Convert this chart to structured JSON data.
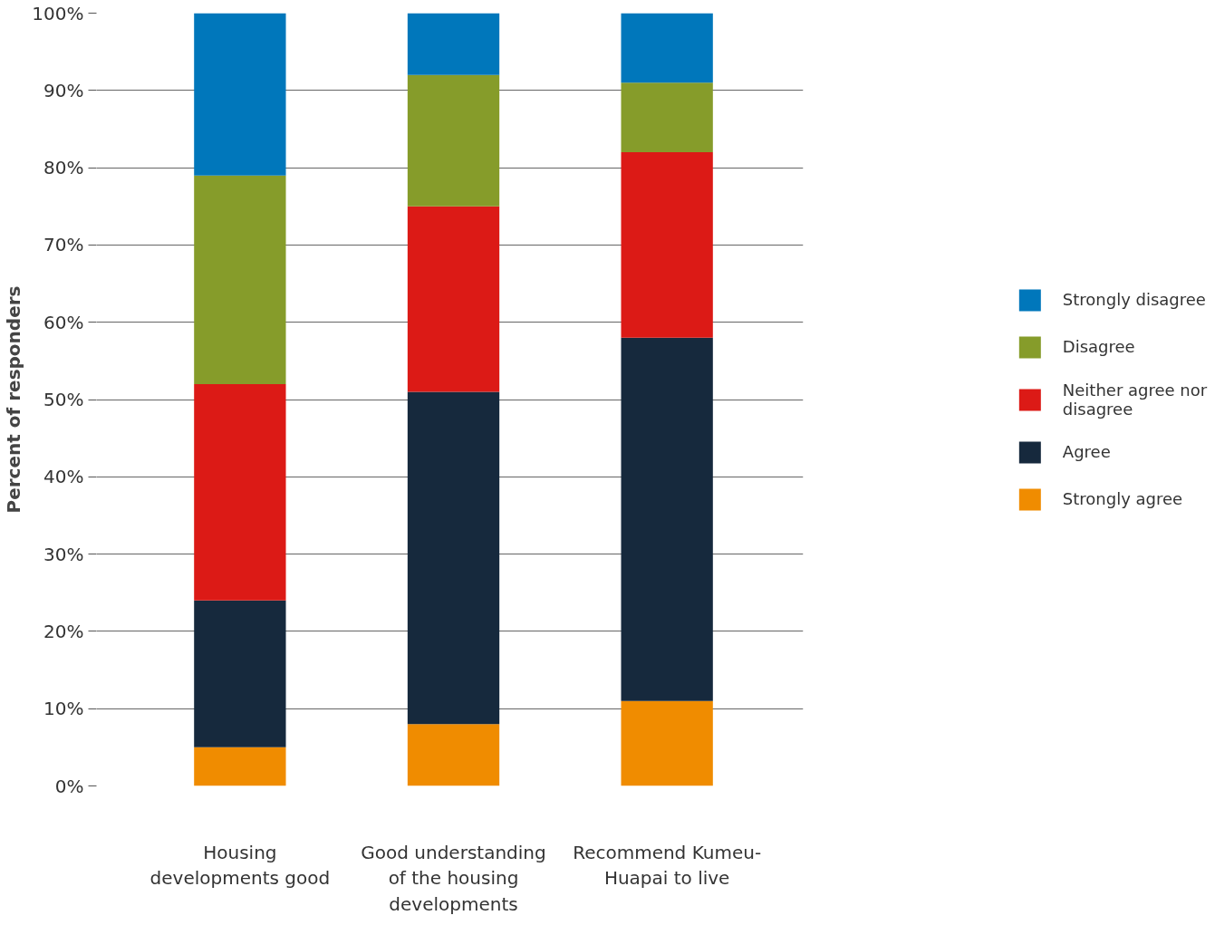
{
  "chart_data": {
    "type": "bar",
    "stacked": true,
    "ylabel": "Percent of responders",
    "categories": [
      "Housing developments good",
      "Good understanding of the housing developments",
      "Recommend Kumeu-Huapai to live"
    ],
    "series": [
      {
        "name": "Strongly agree",
        "color": "#f08c00",
        "values": [
          5,
          8,
          11
        ]
      },
      {
        "name": "Agree",
        "color": "#16293d",
        "values": [
          19,
          43,
          47
        ]
      },
      {
        "name": "Neither agree nor disagree",
        "color": "#dc1a16",
        "values": [
          28,
          24,
          24
        ]
      },
      {
        "name": "Disagree",
        "color": "#869c2a",
        "values": [
          27,
          17,
          9
        ]
      },
      {
        "name": "Strongly disagree",
        "color": "#0077bb",
        "values": [
          21,
          8,
          9
        ]
      }
    ],
    "ylim": [
      0,
      100
    ],
    "yticks": [
      {
        "value": 0,
        "label": "0%"
      },
      {
        "value": 10,
        "label": "10%"
      },
      {
        "value": 20,
        "label": "20%"
      },
      {
        "value": 30,
        "label": "30%"
      },
      {
        "value": 40,
        "label": "40%"
      },
      {
        "value": 50,
        "label": "50%"
      },
      {
        "value": 60,
        "label": "60%"
      },
      {
        "value": 70,
        "label": "70%"
      },
      {
        "value": 80,
        "label": "80%"
      },
      {
        "value": 90,
        "label": "90%"
      },
      {
        "value": 100,
        "label": "100%"
      }
    ],
    "grid": "y",
    "legend": "right"
  }
}
